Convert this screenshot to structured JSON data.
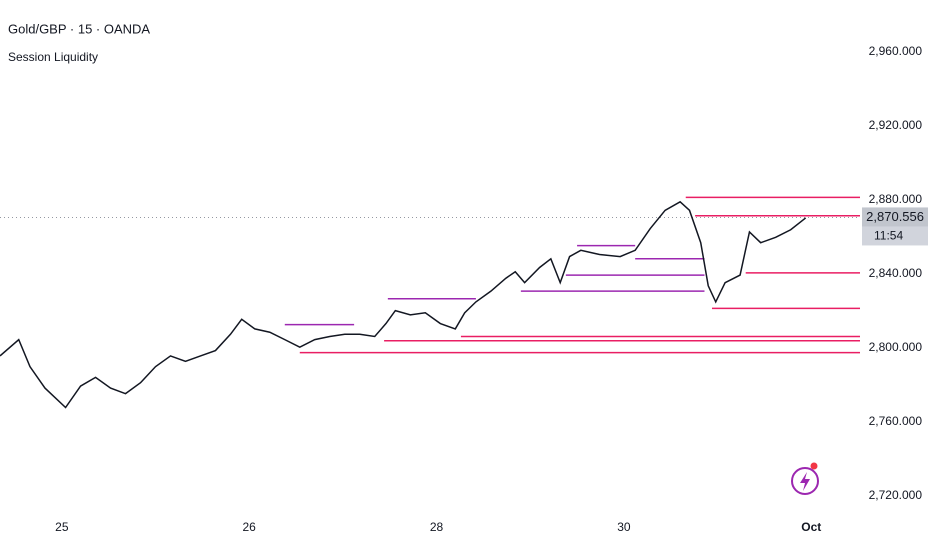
{
  "chart_data": {
    "type": "line",
    "title": "Gold/GBP · 15 · OANDA",
    "subtitle": "Session Liquidity",
    "series": [
      {
        "name": "Gold/GBP",
        "color": "#131722",
        "x": [
          -0.33,
          -0.23,
          -0.17,
          -0.09,
          0.02,
          0.1,
          0.18,
          0.26,
          0.34,
          0.42,
          0.5,
          0.58,
          0.66,
          0.74,
          0.82,
          0.9,
          0.96,
          1.03,
          1.11,
          1.19,
          1.27,
          1.35,
          1.43,
          1.51,
          1.59,
          1.67,
          1.73,
          1.78,
          1.86,
          1.94,
          2.02,
          2.1,
          2.15,
          2.21,
          2.29,
          2.37,
          2.42,
          2.47,
          2.55,
          2.61,
          2.66,
          2.71,
          2.77,
          2.87,
          2.98,
          3.06,
          3.14,
          3.22,
          3.3,
          3.35,
          3.41,
          3.45,
          3.49,
          3.54,
          3.62,
          3.67,
          3.73,
          3.81,
          3.89,
          3.97
        ],
        "values": [
          2795.7,
          2804.5,
          2789.9,
          2778.3,
          2767.8,
          2779.4,
          2784.1,
          2778.3,
          2775.3,
          2781.2,
          2789.9,
          2795.7,
          2792.8,
          2795.7,
          2798.6,
          2807.4,
          2815.5,
          2810.3,
          2808.5,
          2804.5,
          2800.4,
          2804.5,
          2806.2,
          2807.4,
          2807.4,
          2806.2,
          2813.2,
          2820.2,
          2817.9,
          2819.0,
          2813.2,
          2810.3,
          2819.0,
          2824.9,
          2830.7,
          2837.7,
          2841.2,
          2835.3,
          2843.5,
          2848.2,
          2835.3,
          2849.4,
          2852.8,
          2850.5,
          2849.4,
          2852.8,
          2864.5,
          2874.4,
          2879.0,
          2874.4,
          2856.9,
          2833.6,
          2824.9,
          2835.3,
          2839.4,
          2862.7,
          2856.9,
          2859.8,
          2863.9,
          2870.3
        ]
      }
    ],
    "levels": [
      {
        "price": 2881.4,
        "x": [
          3.33,
          4.26
        ],
        "color": "#e91e63"
      },
      {
        "price": 2871.5,
        "x": [
          3.38,
          4.26
        ],
        "color": "#e91e63"
      },
      {
        "price": 2855.3,
        "x": [
          2.75,
          3.06
        ],
        "color": "#9c27b0"
      },
      {
        "price": 2848.2,
        "x": [
          3.06,
          3.43
        ],
        "color": "#9c27b0"
      },
      {
        "price": 2840.6,
        "x": [
          3.65,
          4.26
        ],
        "color": "#e91e63"
      },
      {
        "price": 2839.4,
        "x": [
          2.69,
          3.43
        ],
        "color": "#9c27b0"
      },
      {
        "price": 2830.7,
        "x": [
          2.45,
          3.43
        ],
        "color": "#9c27b0"
      },
      {
        "price": 2826.6,
        "x": [
          1.74,
          2.21
        ],
        "color": "#9c27b0"
      },
      {
        "price": 2821.4,
        "x": [
          3.47,
          4.26
        ],
        "color": "#e91e63"
      },
      {
        "price": 2812.6,
        "x": [
          1.19,
          1.56
        ],
        "color": "#9c27b0"
      },
      {
        "price": 2806.2,
        "x": [
          2.13,
          4.26
        ],
        "color": "#e91e63"
      },
      {
        "price": 2803.9,
        "x": [
          1.72,
          4.26
        ],
        "color": "#e91e63"
      },
      {
        "price": 2797.5,
        "x": [
          1.27,
          4.26
        ],
        "color": "#e91e63"
      }
    ],
    "current_price": {
      "value": 2870.556,
      "label": "2,870.556"
    },
    "countdown": "11:54",
    "xlim": [
      -0.33,
      4.26
    ],
    "xticks": [
      {
        "value": 0,
        "label": "25"
      },
      {
        "value": 1,
        "label": "26"
      },
      {
        "value": 2,
        "label": "28"
      },
      {
        "value": 3,
        "label": "30"
      },
      {
        "value": 4,
        "label": "Oct"
      }
    ],
    "ylim": [
      2712.4,
      2982.7
    ],
    "yticks": [
      {
        "value": 2720,
        "label": "2,720.000"
      },
      {
        "value": 2760,
        "label": "2,760.000"
      },
      {
        "value": 2800,
        "label": "2,800.000"
      },
      {
        "value": 2840,
        "label": "2,840.000"
      },
      {
        "value": 2880,
        "label": "2,880.000"
      },
      {
        "value": 2920,
        "label": "2,920.000"
      },
      {
        "value": 2960,
        "label": "2,960.000"
      }
    ]
  }
}
